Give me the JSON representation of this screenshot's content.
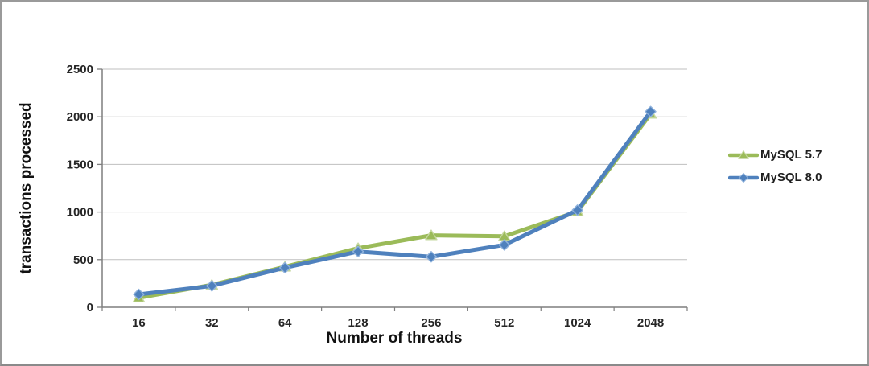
{
  "chart_data": {
    "type": "line",
    "title": "",
    "xlabel": "Number of threads",
    "ylabel": "transactions processed",
    "categories": [
      "16",
      "32",
      "64",
      "128",
      "256",
      "512",
      "1024",
      "2048"
    ],
    "series": [
      {
        "name": "MySQL 5.7",
        "color": "#9BBB59",
        "marker": "triangle",
        "marker_edge": "#c6d8a0",
        "values": [
          100,
          235,
          425,
          620,
          755,
          745,
          1005,
          2030
        ]
      },
      {
        "name": "MySQL 8.0",
        "color": "#4F81BD",
        "marker": "diamond",
        "marker_edge": "#8fb2dc",
        "values": [
          135,
          225,
          415,
          585,
          530,
          655,
          1020,
          2055
        ]
      }
    ],
    "ylim": [
      0,
      2500
    ],
    "yticks": [
      0,
      500,
      1000,
      1500,
      2000,
      2500
    ],
    "ytick_step": 500,
    "grid": true,
    "legend_position": "right",
    "colors": {
      "gridline": "#bfbfbf",
      "axis": "#7f7f7f",
      "text": "#262626"
    }
  }
}
